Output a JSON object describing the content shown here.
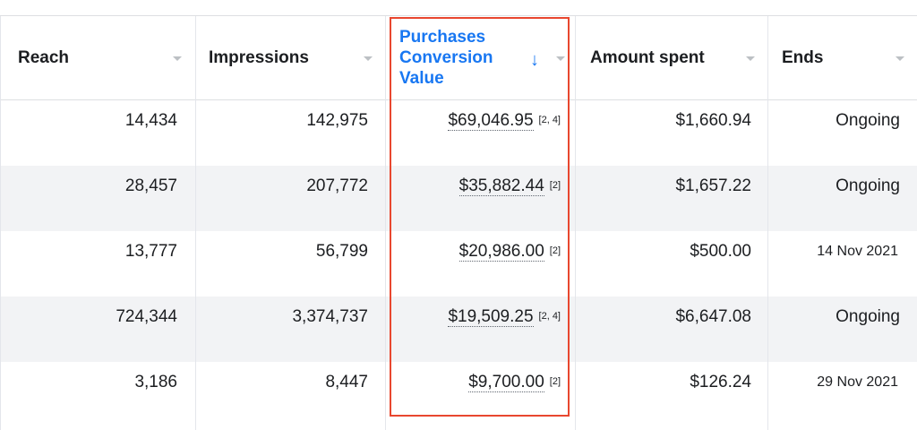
{
  "headers": {
    "reach": "Reach",
    "impressions": "Impressions",
    "purchases_line1": "Purchases",
    "purchases_line2": "Conversion",
    "purchases_line3": "Value",
    "amount": "Amount spent",
    "ends": "Ends",
    "sort_indicator": "↓"
  },
  "rows": [
    {
      "reach": "14,434",
      "impressions": "142,975",
      "value": "$69,046.95",
      "note": "[2, 4]",
      "amount": "$1,660.94",
      "ends": "Ongoing"
    },
    {
      "reach": "28,457",
      "impressions": "207,772",
      "value": "$35,882.44",
      "note": "[2]",
      "amount": "$1,657.22",
      "ends": "Ongoing"
    },
    {
      "reach": "13,777",
      "impressions": "56,799",
      "value": "$20,986.00",
      "note": "[2]",
      "amount": "$500.00",
      "ends": "14 Nov 2021"
    },
    {
      "reach": "724,344",
      "impressions": "3,374,737",
      "value": "$19,509.25",
      "note": "[2, 4]",
      "amount": "$6,647.08",
      "ends": "Ongoing"
    },
    {
      "reach": "3,186",
      "impressions": "8,447",
      "value": "$9,700.00",
      "note": "[2]",
      "amount": "$126.24",
      "ends": "29 Nov 2021"
    }
  ],
  "colors": {
    "sorted_header": "#1877f2",
    "highlight_border": "#e8472f",
    "alt_row": "#f2f3f5"
  },
  "icons": {
    "column_menu": "caret-down-icon",
    "sort": "arrow-down-icon"
  }
}
